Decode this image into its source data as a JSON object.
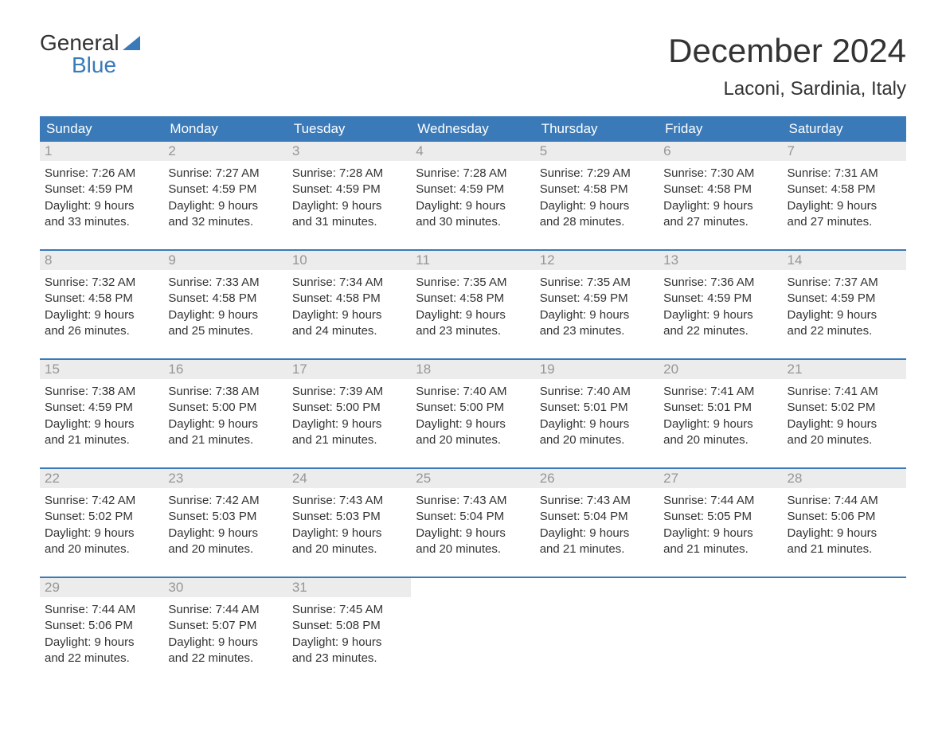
{
  "logo": {
    "word1": "General",
    "word2": "Blue"
  },
  "title": "December 2024",
  "location": "Laconi, Sardinia, Italy",
  "colors": {
    "header_bg": "#3a7ab9",
    "header_text": "#ffffff",
    "daynum_bg": "#ececec",
    "daynum_text": "#969696",
    "body_text": "#333333",
    "accent_blue": "#3a7ab9",
    "page_bg": "#ffffff"
  },
  "typography": {
    "base_family": "Arial",
    "title_size_pt": 42,
    "subtitle_size_pt": 24,
    "weekday_size_pt": 17,
    "daynum_size_pt": 17,
    "body_size_pt": 15
  },
  "weekdays": [
    "Sunday",
    "Monday",
    "Tuesday",
    "Wednesday",
    "Thursday",
    "Friday",
    "Saturday"
  ],
  "weeks": [
    [
      {
        "day": "1",
        "sunrise": "Sunrise: 7:26 AM",
        "sunset": "Sunset: 4:59 PM",
        "dl1": "Daylight: 9 hours",
        "dl2": "and 33 minutes."
      },
      {
        "day": "2",
        "sunrise": "Sunrise: 7:27 AM",
        "sunset": "Sunset: 4:59 PM",
        "dl1": "Daylight: 9 hours",
        "dl2": "and 32 minutes."
      },
      {
        "day": "3",
        "sunrise": "Sunrise: 7:28 AM",
        "sunset": "Sunset: 4:59 PM",
        "dl1": "Daylight: 9 hours",
        "dl2": "and 31 minutes."
      },
      {
        "day": "4",
        "sunrise": "Sunrise: 7:28 AM",
        "sunset": "Sunset: 4:59 PM",
        "dl1": "Daylight: 9 hours",
        "dl2": "and 30 minutes."
      },
      {
        "day": "5",
        "sunrise": "Sunrise: 7:29 AM",
        "sunset": "Sunset: 4:58 PM",
        "dl1": "Daylight: 9 hours",
        "dl2": "and 28 minutes."
      },
      {
        "day": "6",
        "sunrise": "Sunrise: 7:30 AM",
        "sunset": "Sunset: 4:58 PM",
        "dl1": "Daylight: 9 hours",
        "dl2": "and 27 minutes."
      },
      {
        "day": "7",
        "sunrise": "Sunrise: 7:31 AM",
        "sunset": "Sunset: 4:58 PM",
        "dl1": "Daylight: 9 hours",
        "dl2": "and 27 minutes."
      }
    ],
    [
      {
        "day": "8",
        "sunrise": "Sunrise: 7:32 AM",
        "sunset": "Sunset: 4:58 PM",
        "dl1": "Daylight: 9 hours",
        "dl2": "and 26 minutes."
      },
      {
        "day": "9",
        "sunrise": "Sunrise: 7:33 AM",
        "sunset": "Sunset: 4:58 PM",
        "dl1": "Daylight: 9 hours",
        "dl2": "and 25 minutes."
      },
      {
        "day": "10",
        "sunrise": "Sunrise: 7:34 AM",
        "sunset": "Sunset: 4:58 PM",
        "dl1": "Daylight: 9 hours",
        "dl2": "and 24 minutes."
      },
      {
        "day": "11",
        "sunrise": "Sunrise: 7:35 AM",
        "sunset": "Sunset: 4:58 PM",
        "dl1": "Daylight: 9 hours",
        "dl2": "and 23 minutes."
      },
      {
        "day": "12",
        "sunrise": "Sunrise: 7:35 AM",
        "sunset": "Sunset: 4:59 PM",
        "dl1": "Daylight: 9 hours",
        "dl2": "and 23 minutes."
      },
      {
        "day": "13",
        "sunrise": "Sunrise: 7:36 AM",
        "sunset": "Sunset: 4:59 PM",
        "dl1": "Daylight: 9 hours",
        "dl2": "and 22 minutes."
      },
      {
        "day": "14",
        "sunrise": "Sunrise: 7:37 AM",
        "sunset": "Sunset: 4:59 PM",
        "dl1": "Daylight: 9 hours",
        "dl2": "and 22 minutes."
      }
    ],
    [
      {
        "day": "15",
        "sunrise": "Sunrise: 7:38 AM",
        "sunset": "Sunset: 4:59 PM",
        "dl1": "Daylight: 9 hours",
        "dl2": "and 21 minutes."
      },
      {
        "day": "16",
        "sunrise": "Sunrise: 7:38 AM",
        "sunset": "Sunset: 5:00 PM",
        "dl1": "Daylight: 9 hours",
        "dl2": "and 21 minutes."
      },
      {
        "day": "17",
        "sunrise": "Sunrise: 7:39 AM",
        "sunset": "Sunset: 5:00 PM",
        "dl1": "Daylight: 9 hours",
        "dl2": "and 21 minutes."
      },
      {
        "day": "18",
        "sunrise": "Sunrise: 7:40 AM",
        "sunset": "Sunset: 5:00 PM",
        "dl1": "Daylight: 9 hours",
        "dl2": "and 20 minutes."
      },
      {
        "day": "19",
        "sunrise": "Sunrise: 7:40 AM",
        "sunset": "Sunset: 5:01 PM",
        "dl1": "Daylight: 9 hours",
        "dl2": "and 20 minutes."
      },
      {
        "day": "20",
        "sunrise": "Sunrise: 7:41 AM",
        "sunset": "Sunset: 5:01 PM",
        "dl1": "Daylight: 9 hours",
        "dl2": "and 20 minutes."
      },
      {
        "day": "21",
        "sunrise": "Sunrise: 7:41 AM",
        "sunset": "Sunset: 5:02 PM",
        "dl1": "Daylight: 9 hours",
        "dl2": "and 20 minutes."
      }
    ],
    [
      {
        "day": "22",
        "sunrise": "Sunrise: 7:42 AM",
        "sunset": "Sunset: 5:02 PM",
        "dl1": "Daylight: 9 hours",
        "dl2": "and 20 minutes."
      },
      {
        "day": "23",
        "sunrise": "Sunrise: 7:42 AM",
        "sunset": "Sunset: 5:03 PM",
        "dl1": "Daylight: 9 hours",
        "dl2": "and 20 minutes."
      },
      {
        "day": "24",
        "sunrise": "Sunrise: 7:43 AM",
        "sunset": "Sunset: 5:03 PM",
        "dl1": "Daylight: 9 hours",
        "dl2": "and 20 minutes."
      },
      {
        "day": "25",
        "sunrise": "Sunrise: 7:43 AM",
        "sunset": "Sunset: 5:04 PM",
        "dl1": "Daylight: 9 hours",
        "dl2": "and 20 minutes."
      },
      {
        "day": "26",
        "sunrise": "Sunrise: 7:43 AM",
        "sunset": "Sunset: 5:04 PM",
        "dl1": "Daylight: 9 hours",
        "dl2": "and 21 minutes."
      },
      {
        "day": "27",
        "sunrise": "Sunrise: 7:44 AM",
        "sunset": "Sunset: 5:05 PM",
        "dl1": "Daylight: 9 hours",
        "dl2": "and 21 minutes."
      },
      {
        "day": "28",
        "sunrise": "Sunrise: 7:44 AM",
        "sunset": "Sunset: 5:06 PM",
        "dl1": "Daylight: 9 hours",
        "dl2": "and 21 minutes."
      }
    ],
    [
      {
        "day": "29",
        "sunrise": "Sunrise: 7:44 AM",
        "sunset": "Sunset: 5:06 PM",
        "dl1": "Daylight: 9 hours",
        "dl2": "and 22 minutes."
      },
      {
        "day": "30",
        "sunrise": "Sunrise: 7:44 AM",
        "sunset": "Sunset: 5:07 PM",
        "dl1": "Daylight: 9 hours",
        "dl2": "and 22 minutes."
      },
      {
        "day": "31",
        "sunrise": "Sunrise: 7:45 AM",
        "sunset": "Sunset: 5:08 PM",
        "dl1": "Daylight: 9 hours",
        "dl2": "and 23 minutes."
      },
      {
        "day": "",
        "sunrise": "",
        "sunset": "",
        "dl1": "",
        "dl2": ""
      },
      {
        "day": "",
        "sunrise": "",
        "sunset": "",
        "dl1": "",
        "dl2": ""
      },
      {
        "day": "",
        "sunrise": "",
        "sunset": "",
        "dl1": "",
        "dl2": ""
      },
      {
        "day": "",
        "sunrise": "",
        "sunset": "",
        "dl1": "",
        "dl2": ""
      }
    ]
  ]
}
